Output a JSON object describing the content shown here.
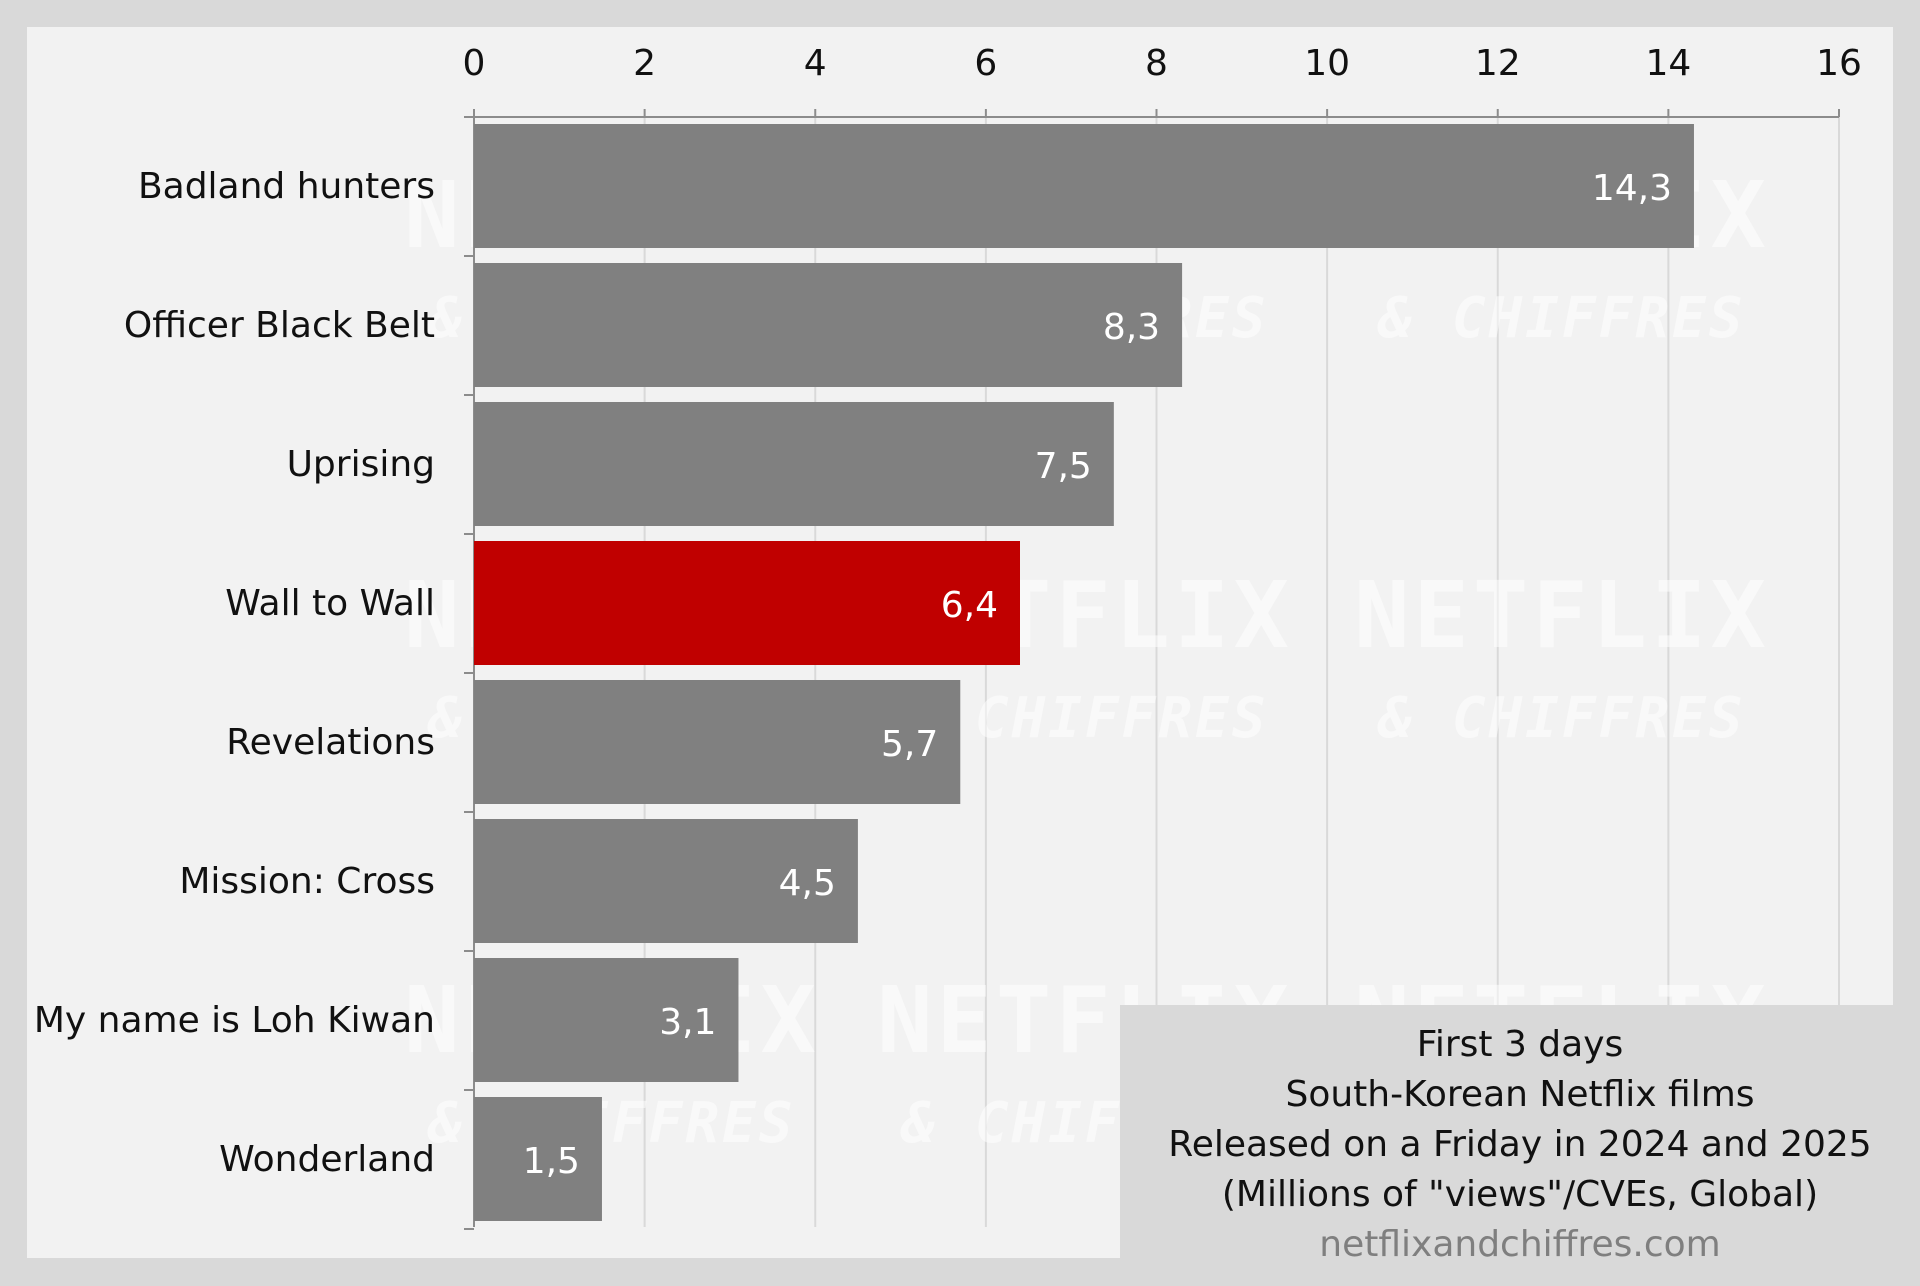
{
  "colors": {
    "background_outer": "#d9d9d9",
    "plot_background": "#f2f2f2",
    "bar_default": "#808080",
    "bar_highlight": "#c00000",
    "grid": "#d9d9d9",
    "label_text": "#111111",
    "data_label_text": "#ffffff",
    "source_text": "#7f7f7f"
  },
  "watermark": {
    "line1": "NETFLIX",
    "line2": "& CHIFFRES"
  },
  "info_box": {
    "line1": "First 3 days",
    "line2": "South-Korean Netflix films",
    "line3": "Released on a Friday in 2024 and 2025",
    "line4": "(Millions of \"views\"/CVEs, Global)",
    "source": "netflixandchiffres.com"
  },
  "chart_data": {
    "type": "bar",
    "orientation": "horizontal",
    "axis_position": "top",
    "grid": true,
    "xlim": [
      0,
      16
    ],
    "ticks": [
      0,
      2,
      4,
      6,
      8,
      10,
      12,
      14,
      16
    ],
    "categories": [
      "Badland hunters",
      "Officer Black Belt",
      "Uprising",
      "Wall to Wall",
      "Revelations",
      "Mission: Cross",
      "My name is Loh Kiwan",
      "Wonderland"
    ],
    "values": [
      14.3,
      8.3,
      7.5,
      6.4,
      5.7,
      4.5,
      3.1,
      1.5
    ],
    "value_labels": [
      "14,3",
      "8,3",
      "7,5",
      "6,4",
      "5,7",
      "4,5",
      "3,1",
      "1,5"
    ],
    "highlight": "Wall to Wall"
  }
}
